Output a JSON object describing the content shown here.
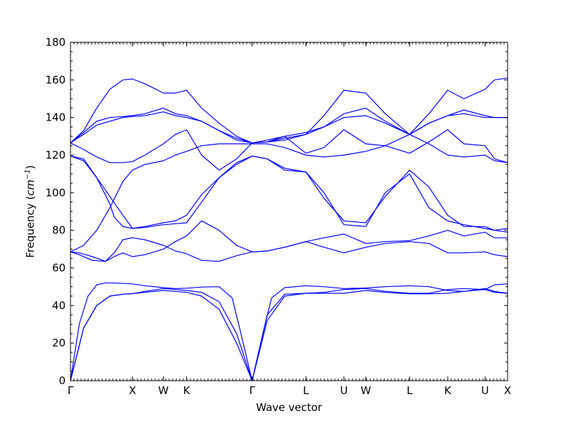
{
  "chart_data": {
    "type": "line",
    "title": "",
    "xlabel": "Wave vector",
    "ylabel": "Frequency (cm⁻¹)",
    "ylabel_parts": {
      "prefix": "Frequency (",
      "base": "cm",
      "sup": "−1",
      "suffix": ")"
    },
    "ylim": [
      0,
      180
    ],
    "yticks": [
      0,
      20,
      40,
      60,
      80,
      100,
      120,
      140,
      160,
      180
    ],
    "xlim": [
      0,
      1
    ],
    "grid": false,
    "line_color": "#0000ff",
    "kpoints": [
      {
        "label": "Γ",
        "x": 0.0
      },
      {
        "label": "X",
        "x": 0.1417
      },
      {
        "label": "W",
        "x": 0.2126
      },
      {
        "label": "K",
        "x": 0.2656
      },
      {
        "label": "Γ",
        "x": 0.4156
      },
      {
        "label": "L",
        "x": 0.5386
      },
      {
        "label": "U",
        "x": 0.6255
      },
      {
        "label": "W",
        "x": 0.6756
      },
      {
        "label": "L",
        "x": 0.7758
      },
      {
        "label": "K",
        "x": 0.8629
      },
      {
        "label": "U",
        "x": 0.9484
      },
      {
        "label": "X",
        "x": 1.0
      }
    ],
    "series": [
      {
        "x": [
          0,
          0.03,
          0.06,
          0.09,
          0.12,
          0.1417,
          0.17,
          0.2126,
          0.24,
          0.2656,
          0.3,
          0.34,
          0.38,
          0.4156,
          0.45,
          0.49,
          0.5386,
          0.58,
          0.6255,
          0.6756,
          0.72,
          0.7758,
          0.82,
          0.8629,
          0.9,
          0.9484,
          0.97,
          1.0
        ],
        "y": [
          0,
          28,
          40,
          45,
          46,
          46.3,
          47,
          48,
          47.5,
          47,
          45,
          38,
          20,
          0,
          32,
          45,
          46.5,
          46.5,
          46.5,
          48,
          47,
          46.2,
          46.2,
          46.5,
          47.5,
          49,
          47.5,
          46.5
        ]
      },
      {
        "x": [
          0,
          0.03,
          0.06,
          0.09,
          0.12,
          0.1417,
          0.17,
          0.2126,
          0.24,
          0.2656,
          0.3,
          0.34,
          0.38,
          0.4156,
          0.45,
          0.49,
          0.5386,
          0.58,
          0.6255,
          0.6756,
          0.72,
          0.7758,
          0.82,
          0.8629,
          0.9,
          0.9484,
          0.97,
          1.0
        ],
        "y": [
          0,
          28,
          40,
          45,
          46,
          46.3,
          47.5,
          49,
          48.5,
          48,
          47,
          42,
          25,
          0,
          35,
          46,
          46.5,
          47,
          48.5,
          49,
          47.5,
          46.5,
          46.5,
          48.5,
          49,
          48.5,
          47,
          46.5
        ]
      },
      {
        "x": [
          0,
          0.02,
          0.04,
          0.06,
          0.08,
          0.1,
          0.1417,
          0.17,
          0.2126,
          0.24,
          0.2656,
          0.3,
          0.34,
          0.37,
          0.39,
          0.4156,
          0.44,
          0.46,
          0.49,
          0.5386,
          0.58,
          0.6255,
          0.6756,
          0.72,
          0.7758,
          0.82,
          0.8629,
          0.9,
          0.9484,
          0.97,
          1.0
        ],
        "y": [
          0,
          30,
          45,
          51,
          52,
          52,
          51.5,
          50.5,
          49.5,
          49,
          49.2,
          49.8,
          50,
          44,
          25,
          0,
          25,
          44,
          49.5,
          50.5,
          50,
          49,
          49.3,
          50,
          50.5,
          50,
          48,
          47.5,
          48.5,
          51,
          51.5
        ]
      },
      {
        "x": [
          0,
          0.02,
          0.05,
          0.08,
          0.1,
          0.12,
          0.1417,
          0.17,
          0.2126,
          0.24,
          0.2656,
          0.3,
          0.34,
          0.38,
          0.4156,
          0.45,
          0.49,
          0.5386,
          0.58,
          0.6255,
          0.6756,
          0.72,
          0.7758,
          0.82,
          0.8629,
          0.9,
          0.9484,
          0.97,
          1.0
        ],
        "y": [
          68.5,
          67,
          64,
          63.5,
          68,
          75,
          76,
          75,
          72,
          69,
          67.5,
          64,
          63.5,
          66.5,
          68.5,
          69,
          71,
          74,
          71,
          68,
          71,
          73,
          74,
          73,
          68,
          68,
          68.5,
          67,
          66
        ]
      },
      {
        "x": [
          0,
          0.02,
          0.05,
          0.08,
          0.1,
          0.12,
          0.1417,
          0.17,
          0.2126,
          0.24,
          0.2656,
          0.3,
          0.34,
          0.38,
          0.4156,
          0.45,
          0.49,
          0.5386,
          0.58,
          0.6255,
          0.6756,
          0.72,
          0.7758,
          0.82,
          0.8629,
          0.9,
          0.9484,
          0.97,
          1.0
        ],
        "y": [
          68.5,
          68,
          66,
          63.5,
          66,
          68,
          66,
          67,
          70,
          74,
          77,
          85,
          80,
          72,
          68.5,
          69,
          71,
          74,
          76,
          78,
          73,
          74,
          74.5,
          77,
          80,
          77,
          79,
          76,
          76
        ]
      },
      {
        "x": [
          0,
          0.03,
          0.06,
          0.09,
          0.12,
          0.1417,
          0.17,
          0.2126,
          0.24,
          0.2656,
          0.3,
          0.34,
          0.38,
          0.4156,
          0.45,
          0.49,
          0.5386,
          0.58,
          0.6255,
          0.6756,
          0.72,
          0.7758,
          0.82,
          0.8629,
          0.9,
          0.9484,
          0.97,
          1.0
        ],
        "y": [
          68.5,
          72,
          80,
          92,
          106,
          112,
          115,
          117,
          120,
          122,
          125,
          126,
          126,
          126,
          126,
          124,
          120,
          119,
          120,
          122,
          125,
          131,
          126,
          120,
          119,
          120,
          117,
          116
        ]
      },
      {
        "x": [
          0,
          0.03,
          0.06,
          0.09,
          0.1,
          0.12,
          0.1417,
          0.17,
          0.2126,
          0.24,
          0.2656,
          0.3,
          0.34,
          0.38,
          0.4156,
          0.45,
          0.49,
          0.5386,
          0.58,
          0.6255,
          0.6756,
          0.72,
          0.7758,
          0.82,
          0.8629,
          0.9,
          0.9484,
          0.97,
          1.0
        ],
        "y": [
          119.5,
          118,
          108,
          94,
          87,
          82,
          81,
          81.5,
          83,
          83.5,
          84,
          95,
          108,
          116,
          119.5,
          118,
          113,
          111,
          100,
          83,
          82,
          100,
          110,
          92,
          85,
          83,
          81,
          80,
          79
        ]
      },
      {
        "x": [
          0,
          0.03,
          0.06,
          0.09,
          0.12,
          0.1417,
          0.17,
          0.2126,
          0.24,
          0.2656,
          0.3,
          0.34,
          0.38,
          0.4156,
          0.45,
          0.49,
          0.5386,
          0.58,
          0.6255,
          0.6756,
          0.72,
          0.7758,
          0.82,
          0.8629,
          0.9,
          0.9484,
          0.97,
          1.0
        ],
        "y": [
          119.5,
          117,
          108,
          98,
          88,
          81,
          82,
          84,
          85,
          88,
          99,
          108,
          115,
          119.5,
          118,
          112,
          111,
          97,
          85,
          84,
          98,
          112,
          103,
          88,
          82,
          82,
          80,
          81
        ]
      },
      {
        "x": [
          0,
          0.03,
          0.06,
          0.09,
          0.12,
          0.1417,
          0.17,
          0.2126,
          0.24,
          0.2656,
          0.3,
          0.34,
          0.38,
          0.4156,
          0.45,
          0.49,
          0.5386,
          0.58,
          0.6255,
          0.6756,
          0.72,
          0.7758,
          0.82,
          0.8629,
          0.9,
          0.9484,
          0.97,
          1.0
        ],
        "y": [
          126.5,
          131,
          136,
          138,
          140,
          140.5,
          141,
          143,
          141,
          140,
          138,
          133,
          129,
          126.5,
          127,
          128,
          131,
          135,
          140,
          141,
          137,
          131,
          137,
          141,
          142,
          140,
          140,
          140
        ]
      },
      {
        "x": [
          0,
          0.03,
          0.06,
          0.09,
          0.12,
          0.1417,
          0.17,
          0.2126,
          0.24,
          0.2656,
          0.3,
          0.34,
          0.38,
          0.4156,
          0.45,
          0.49,
          0.5386,
          0.58,
          0.6255,
          0.6756,
          0.72,
          0.7758,
          0.82,
          0.8629,
          0.9,
          0.9484,
          0.97,
          1.0
        ],
        "y": [
          126.5,
          132,
          138,
          140,
          140.5,
          141,
          142,
          145,
          142,
          141,
          138,
          133,
          128,
          126.5,
          127,
          130,
          132,
          135,
          142,
          145,
          138,
          131,
          137,
          141,
          144,
          141,
          140,
          140
        ]
      },
      {
        "x": [
          0,
          0.03,
          0.06,
          0.09,
          0.12,
          0.1417,
          0.17,
          0.2126,
          0.24,
          0.2656,
          0.3,
          0.34,
          0.38,
          0.4156,
          0.45,
          0.49,
          0.5386,
          0.58,
          0.6255,
          0.6756,
          0.72,
          0.7758,
          0.82,
          0.8629,
          0.9,
          0.9484,
          0.97,
          1.0
        ],
        "y": [
          126.5,
          133,
          145,
          155,
          160,
          160.5,
          158,
          153,
          153,
          154.5,
          145,
          137,
          130,
          126.5,
          127,
          129,
          131,
          141,
          154.5,
          153,
          142,
          131,
          142,
          154.5,
          150,
          155,
          160,
          161
        ]
      },
      {
        "x": [
          0,
          0.03,
          0.06,
          0.09,
          0.12,
          0.1417,
          0.17,
          0.2126,
          0.24,
          0.2656,
          0.3,
          0.34,
          0.38,
          0.4156,
          0.45,
          0.49,
          0.5386,
          0.58,
          0.6255,
          0.6756,
          0.72,
          0.7758,
          0.82,
          0.8629,
          0.9,
          0.9484,
          0.97,
          1.0
        ],
        "y": [
          126.5,
          123,
          119,
          116,
          116,
          116.5,
          120,
          126,
          131,
          133.5,
          120,
          112,
          118,
          126.5,
          128,
          130,
          121,
          124,
          133.5,
          126,
          125,
          121,
          127,
          133.5,
          126,
          125,
          118,
          116
        ]
      }
    ]
  }
}
